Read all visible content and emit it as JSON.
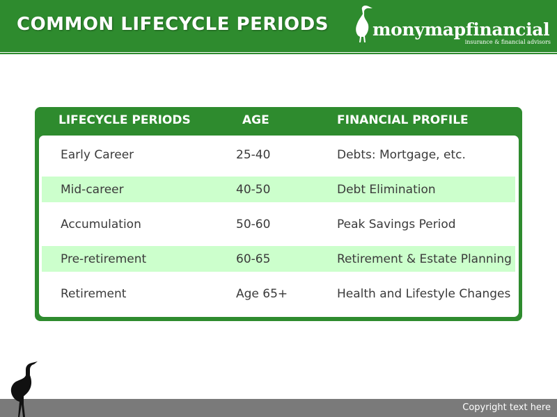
{
  "header": {
    "title": "COMMON LIFECYCLE PERIODS",
    "logo": {
      "name": "monymapfinancial",
      "tagline": "insurance & financial advisors",
      "icon": "heron-icon"
    }
  },
  "table": {
    "columns": [
      "LIFECYCLE PERIODS",
      "AGE",
      "FINANCIAL PROFILE"
    ],
    "rows": [
      {
        "period": "Early Career",
        "age": "25-40",
        "profile": "Debts: Mortgage, etc."
      },
      {
        "period": "Mid-career",
        "age": "40-50",
        "profile": "Debt Elimination"
      },
      {
        "period": "Accumulation",
        "age": "50-60",
        "profile": "Peak Savings Period"
      },
      {
        "period": "Pre-retirement",
        "age": "60-65",
        "profile": "Retirement & Estate Planning"
      },
      {
        "period": "Retirement",
        "age": "Age 65+",
        "profile": "Health and Lifestyle Changes"
      }
    ]
  },
  "footer": {
    "copyright": "Copyright text here",
    "icon": "heron-silhouette-icon"
  },
  "colors": {
    "brand_green": "#2e8b2e",
    "row_highlight": "#ccffcc",
    "footer_gray": "#7a7a7a"
  }
}
